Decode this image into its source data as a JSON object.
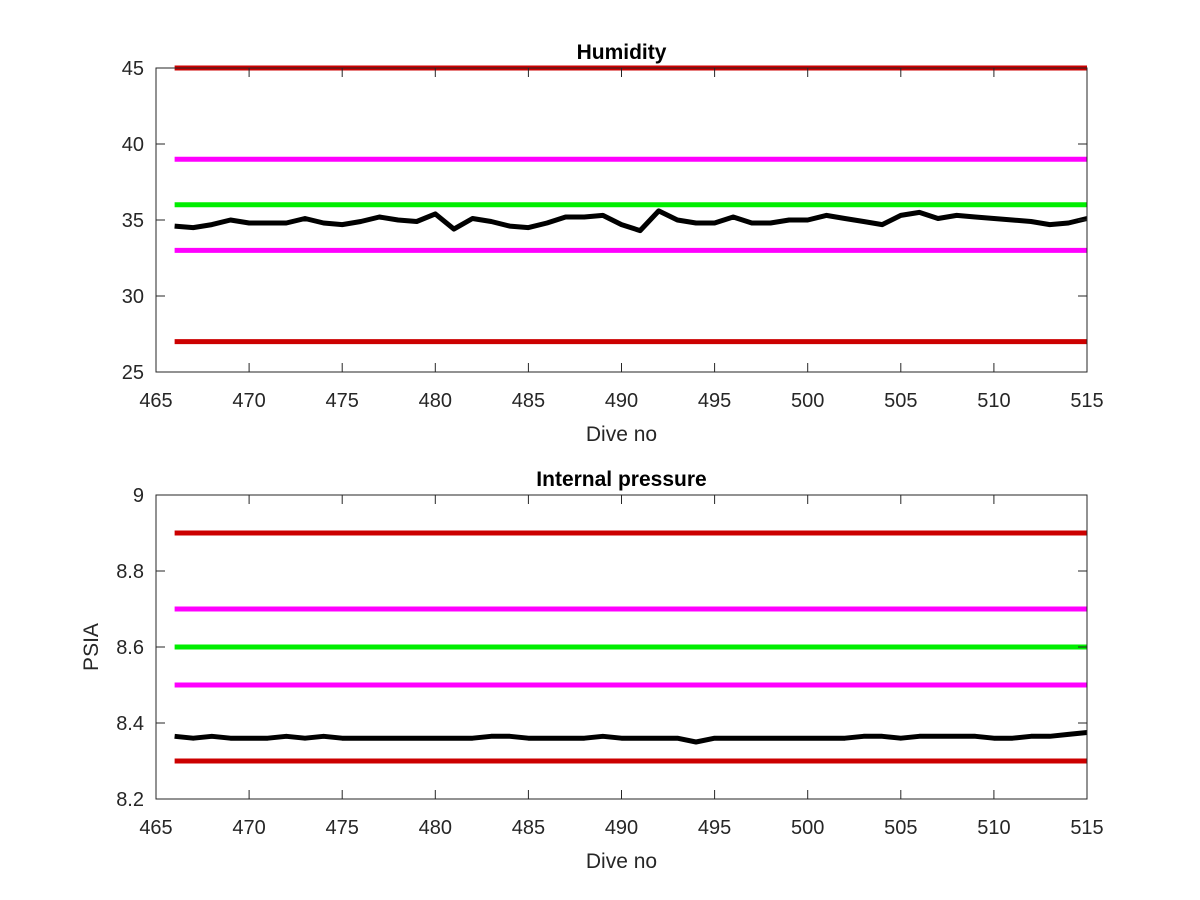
{
  "chart_data": [
    {
      "type": "line",
      "title": "Humidity",
      "xlabel": "Dive no",
      "ylabel": "",
      "xlim": [
        465,
        515
      ],
      "ylim": [
        25,
        45
      ],
      "xticks": [
        465,
        470,
        475,
        480,
        485,
        490,
        495,
        500,
        505,
        510,
        515
      ],
      "yticks": [
        25,
        30,
        35,
        40,
        45
      ],
      "grid": false,
      "colors": {
        "line": "#000000",
        "red": "#cc0000",
        "magenta": "#ff00ff",
        "green": "#00ee00"
      },
      "threshold_lines": [
        {
          "y": 45,
          "color": "#cc0000"
        },
        {
          "y": 39,
          "color": "#ff00ff"
        },
        {
          "y": 36,
          "color": "#00ee00"
        },
        {
          "y": 33,
          "color": "#ff00ff"
        },
        {
          "y": 27,
          "color": "#cc0000"
        }
      ],
      "x": [
        466,
        467,
        468,
        469,
        470,
        471,
        472,
        473,
        474,
        475,
        476,
        477,
        478,
        479,
        480,
        481,
        482,
        483,
        484,
        485,
        486,
        487,
        488,
        489,
        490,
        491,
        492,
        493,
        494,
        495,
        496,
        497,
        498,
        499,
        500,
        501,
        502,
        503,
        504,
        505,
        506,
        507,
        508,
        509,
        510,
        511,
        512,
        513,
        514,
        515
      ],
      "values": [
        34.6,
        34.5,
        34.7,
        35.0,
        34.8,
        34.8,
        34.8,
        35.1,
        34.8,
        34.7,
        34.9,
        35.2,
        35.0,
        34.9,
        35.4,
        34.4,
        35.1,
        34.9,
        34.6,
        34.5,
        34.8,
        35.2,
        35.2,
        35.3,
        34.7,
        34.3,
        35.6,
        35.0,
        34.8,
        34.8,
        35.2,
        34.8,
        34.8,
        35.0,
        35.0,
        35.3,
        35.1,
        34.9,
        34.7,
        35.3,
        35.5,
        35.1,
        35.3,
        35.2,
        35.1,
        35.0,
        34.9,
        34.7,
        34.8,
        35.1
      ]
    },
    {
      "type": "line",
      "title": "Internal pressure",
      "xlabel": "Dive no",
      "ylabel": "PSIA",
      "xlim": [
        465,
        515
      ],
      "ylim": [
        8.2,
        9
      ],
      "xticks": [
        465,
        470,
        475,
        480,
        485,
        490,
        495,
        500,
        505,
        510,
        515
      ],
      "yticks": [
        8.2,
        8.4,
        8.6,
        8.8,
        9
      ],
      "grid": false,
      "colors": {
        "line": "#000000",
        "red": "#cc0000",
        "magenta": "#ff00ff",
        "green": "#00ee00"
      },
      "threshold_lines": [
        {
          "y": 8.9,
          "color": "#cc0000"
        },
        {
          "y": 8.7,
          "color": "#ff00ff"
        },
        {
          "y": 8.6,
          "color": "#00ee00"
        },
        {
          "y": 8.5,
          "color": "#ff00ff"
        },
        {
          "y": 8.3,
          "color": "#cc0000"
        }
      ],
      "x": [
        466,
        467,
        468,
        469,
        470,
        471,
        472,
        473,
        474,
        475,
        476,
        477,
        478,
        479,
        480,
        481,
        482,
        483,
        484,
        485,
        486,
        487,
        488,
        489,
        490,
        491,
        492,
        493,
        494,
        495,
        496,
        497,
        498,
        499,
        500,
        501,
        502,
        503,
        504,
        505,
        506,
        507,
        508,
        509,
        510,
        511,
        512,
        513,
        514,
        515
      ],
      "values": [
        8.365,
        8.36,
        8.365,
        8.36,
        8.36,
        8.36,
        8.365,
        8.36,
        8.365,
        8.36,
        8.36,
        8.36,
        8.36,
        8.36,
        8.36,
        8.36,
        8.36,
        8.365,
        8.365,
        8.36,
        8.36,
        8.36,
        8.36,
        8.365,
        8.36,
        8.36,
        8.36,
        8.36,
        8.35,
        8.36,
        8.36,
        8.36,
        8.36,
        8.36,
        8.36,
        8.36,
        8.36,
        8.365,
        8.365,
        8.36,
        8.365,
        8.365,
        8.365,
        8.365,
        8.36,
        8.36,
        8.365,
        8.365,
        8.37,
        8.375
      ]
    }
  ]
}
